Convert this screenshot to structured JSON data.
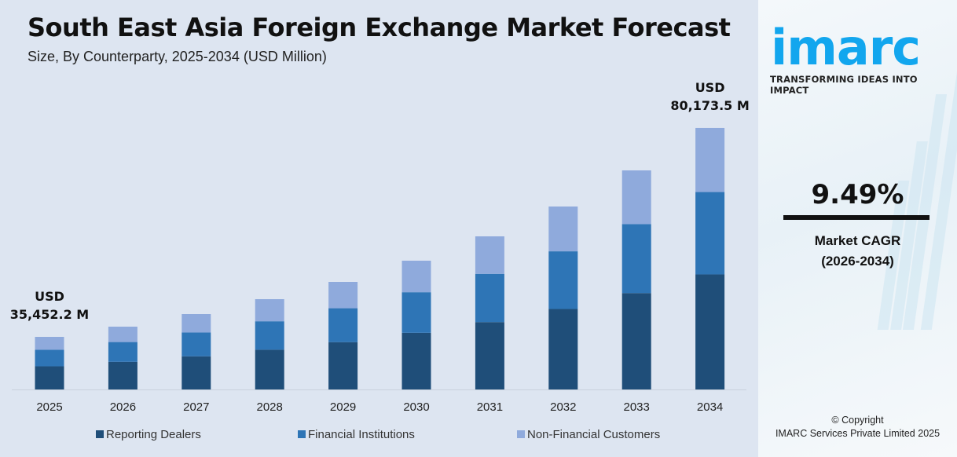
{
  "chart_data": {
    "type": "bar",
    "stacked": true,
    "title": "South East Asia Foreign Exchange Market Forecast",
    "subtitle": "Size, By Counterparty, 2025-2034 (USD Million)",
    "categories": [
      "2025",
      "2026",
      "2027",
      "2028",
      "2029",
      "2030",
      "2031",
      "2032",
      "2033",
      "2034"
    ],
    "series": [
      {
        "name": "Reporting Dealers",
        "color": "#1f4e79",
        "values": [
          15600,
          16560,
          17744,
          19149,
          20776,
          22774,
          25066,
          27877,
          31280,
          35276
        ]
      },
      {
        "name": "Financial Institutions",
        "color": "#2e75b6",
        "values": [
          11170,
          11856,
          12703,
          13709,
          14874,
          16304,
          17945,
          19957,
          22393,
          25255
        ]
      },
      {
        "name": "Non-Financial Customers",
        "color": "#8faadc",
        "values": [
          8682,
          9221,
          9880,
          10662,
          11569,
          12680,
          13958,
          15523,
          17417,
          19642
        ]
      }
    ],
    "annotations": [
      {
        "category": "2025",
        "line1": "USD",
        "line2": "35,452.2 M"
      },
      {
        "category": "2034",
        "line1": "USD",
        "line2": "80,173.5 M"
      }
    ],
    "legend": "bottom",
    "grid": false,
    "xlabel": "",
    "ylabel": ""
  },
  "side": {
    "logo": "imarc",
    "tagline": "TRANSFORMING IDEAS INTO IMPACT",
    "cagr_value": "9.49%",
    "cagr_label": "Market CAGR",
    "cagr_period": "(2026-2034)",
    "copyright": "© Copyright",
    "company": "IMARC Services Private Limited 2025"
  }
}
